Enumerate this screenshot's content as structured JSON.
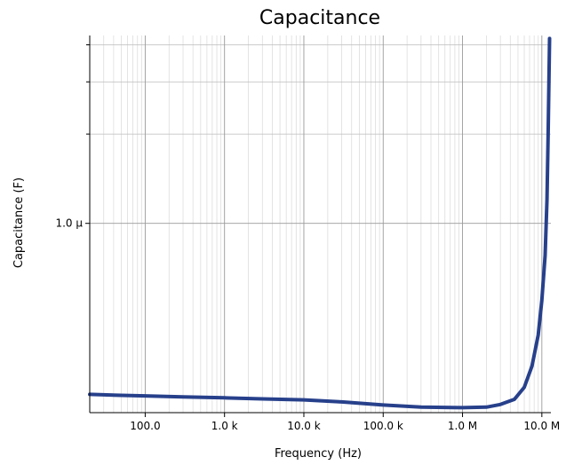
{
  "chart_data": {
    "type": "line",
    "title": "Capacitance",
    "xlabel": "Frequency (Hz)",
    "ylabel": "Capacitance (F)",
    "x_scale": "log",
    "y_scale": "log",
    "xlim": [
      20,
      13000000
    ],
    "ylim": [
      2.3e-07,
      4.3e-06
    ],
    "grid": true,
    "x_ticks": [
      {
        "value": 100,
        "label": "100.0"
      },
      {
        "value": 1000,
        "label": "1.0 k"
      },
      {
        "value": 10000,
        "label": "10.0 k"
      },
      {
        "value": 100000,
        "label": "100.0 k"
      },
      {
        "value": 1000000,
        "label": "1.0 M"
      },
      {
        "value": 10000000,
        "label": "10.0 M"
      }
    ],
    "y_ticks": [
      {
        "value": 1e-06,
        "label": "1.0 µ"
      }
    ],
    "y_minor_ticks": [
      2e-06,
      3e-06,
      4e-06
    ],
    "line_color": "#27408b",
    "series": [
      {
        "x": [
          20,
          50,
          100,
          300,
          1000,
          3000,
          10000,
          30000,
          100000,
          300000,
          1000000,
          2000000,
          3000000,
          4500000,
          6000000,
          7500000,
          9000000,
          10000000,
          11000000,
          11600000,
          12000000,
          12500000
        ],
        "y": [
          2.65e-07,
          2.63e-07,
          2.62e-07,
          2.6e-07,
          2.58e-07,
          2.56e-07,
          2.54e-07,
          2.5e-07,
          2.44e-07,
          2.4e-07,
          2.39e-07,
          2.4e-07,
          2.45e-07,
          2.55e-07,
          2.8e-07,
          3.3e-07,
          4.2e-07,
          5.5e-07,
          7.8e-07,
          1.2e-06,
          2e-06,
          4.2e-06
        ]
      }
    ]
  }
}
